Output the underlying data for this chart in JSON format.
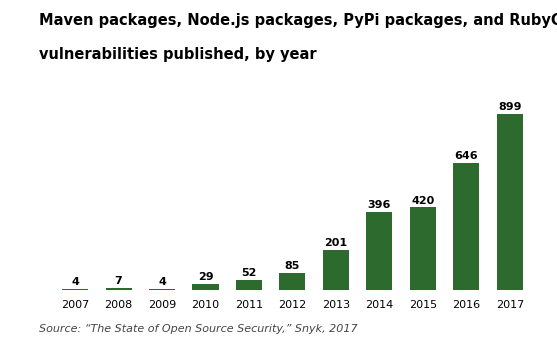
{
  "title_line1": "Maven packages, Node.js packages, PyPi packages, and RubyGems gems",
  "title_line2": "vulnerabilities published, by year",
  "years": [
    "2007",
    "2008",
    "2009",
    "2010",
    "2011",
    "2012",
    "2013",
    "2014",
    "2015",
    "2016",
    "2017"
  ],
  "values": [
    4,
    7,
    4,
    29,
    52,
    85,
    201,
    396,
    420,
    646,
    899
  ],
  "bar_color": "#2d6a2d",
  "background_color": "#ffffff",
  "source_text": "Source: “The State of Open Source Security,” Snyk, 2017",
  "title_fontsize": 10.5,
  "label_fontsize": 8,
  "source_fontsize": 8,
  "tick_fontsize": 8,
  "ylim": [
    0,
    980
  ]
}
